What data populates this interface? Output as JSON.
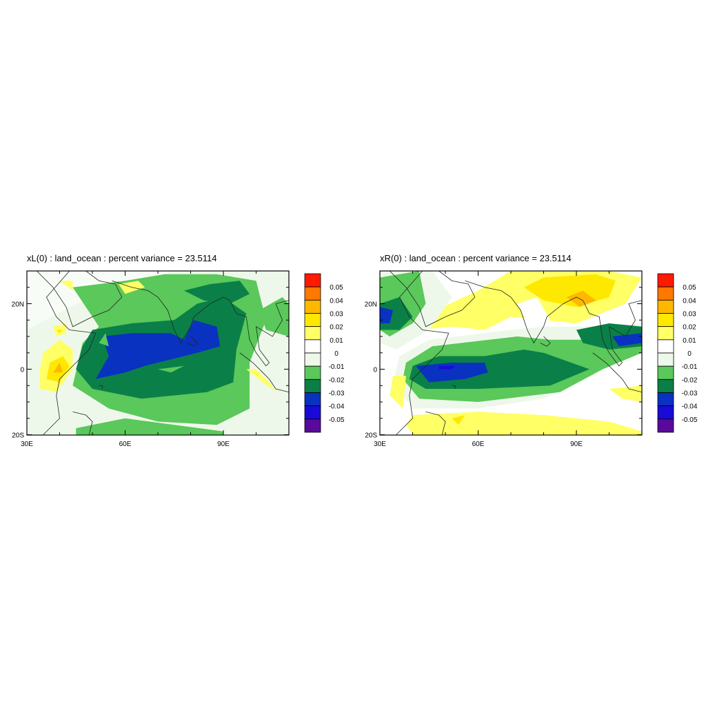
{
  "chart_data": [
    {
      "type": "heatmap",
      "title": "xL(0) : land_ocean : percent variance = 23.5114",
      "x_ticks": [
        "30E",
        "60E",
        "90E"
      ],
      "y_ticks": [
        "20N",
        "0",
        "20S"
      ],
      "lon_range": [
        30,
        110
      ],
      "lat_range": [
        -20,
        30
      ],
      "colorbar_labels": [
        "0.05",
        "0.04",
        "0.03",
        "0.02",
        "0.01",
        "0",
        "-0.01",
        "-0.02",
        "-0.03",
        "-0.04",
        "-0.05"
      ],
      "colorbar_colors": [
        "#ff1a00",
        "#ff7800",
        "#ffb800",
        "#ffe800",
        "#ffff66",
        "#ffffff",
        "#eef8ea",
        "#5ac85a",
        "#0a8048",
        "#0a32c0",
        "#1a0ad8",
        "#5a0a9a"
      ],
      "pattern": "negative (green/blue) over central Indian Ocean and Bay of Bengal, minimum below -0.03 near equator 50E-90E; positive (yellow/orange) near Horn of Africa"
    },
    {
      "type": "heatmap",
      "title": "xR(0) : land_ocean : percent variance = 23.5114",
      "x_ticks": [
        "30E",
        "60E",
        "90E"
      ],
      "y_ticks": [
        "20N",
        "0",
        "20S"
      ],
      "lon_range": [
        30,
        110
      ],
      "lat_range": [
        -20,
        30
      ],
      "colorbar_labels": [
        "0.05",
        "0.04",
        "0.03",
        "0.02",
        "0.01",
        "0",
        "-0.01",
        "-0.02",
        "-0.03",
        "-0.04",
        "-0.05"
      ],
      "colorbar_colors": [
        "#ff1a00",
        "#ff7800",
        "#ffb800",
        "#ffe800",
        "#ffff66",
        "#ffffff",
        "#eef8ea",
        "#5ac85a",
        "#0a8048",
        "#0a32c0",
        "#1a0ad8",
        "#5a0a9a"
      ],
      "pattern": "negative band along equator 40E-100E with minimum near 45E-60E; positive (yellow/orange) over northern India / Bay of Bengal and south of 10S"
    }
  ]
}
